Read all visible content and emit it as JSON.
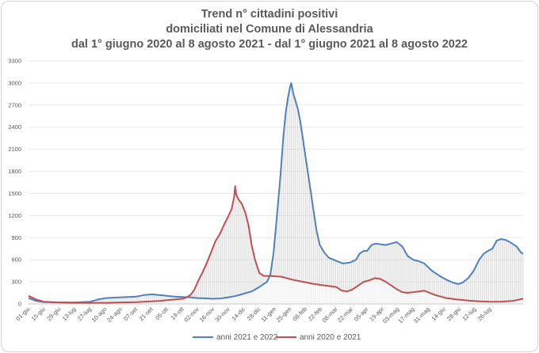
{
  "chart_data": {
    "type": "line",
    "title_lines": [
      "Trend n° cittadini positivi",
      "domiciliati nel Comune di Alessandria",
      "dal 1° giugno 2020 al 8 agosto 2021 - dal 1° giugno 2021 al 8 agosto 2022"
    ],
    "xlabel": "",
    "ylabel": "",
    "ylim": [
      0,
      3300
    ],
    "yticks": [
      0,
      300,
      600,
      900,
      1200,
      1500,
      1800,
      2100,
      2400,
      2700,
      3000,
      3300
    ],
    "x_tick_labels": [
      "01-giu",
      "15-giu",
      "29-giu",
      "13-lug",
      "27-lug",
      "10-ago",
      "24-ago",
      "07-set",
      "21-set",
      "05-ott",
      "19-ott",
      "02-nov",
      "16-nov",
      "30-nov",
      "14-dic",
      "28-dic",
      "11-gen",
      "25-gen",
      "08-feb",
      "22-feb",
      "08-mar",
      "22-mar",
      "05-apr",
      "19-apr",
      "03-mag",
      "17-mag",
      "31-mag",
      "14-giu",
      "28-giu",
      "12-lug",
      "26-lug"
    ],
    "x_tick_step_days": 14,
    "total_days": 434,
    "grid": true,
    "legend_position": "bottom",
    "series": [
      {
        "name": "anni 2021 e 2022",
        "color": "#4f81bd",
        "points": [
          [
            0,
            80
          ],
          [
            7,
            40
          ],
          [
            14,
            25
          ],
          [
            28,
            20
          ],
          [
            42,
            20
          ],
          [
            56,
            30
          ],
          [
            63,
            60
          ],
          [
            70,
            80
          ],
          [
            77,
            85
          ],
          [
            84,
            90
          ],
          [
            91,
            95
          ],
          [
            98,
            100
          ],
          [
            105,
            120
          ],
          [
            112,
            130
          ],
          [
            119,
            120
          ],
          [
            126,
            110
          ],
          [
            133,
            100
          ],
          [
            140,
            95
          ],
          [
            147,
            90
          ],
          [
            154,
            80
          ],
          [
            161,
            75
          ],
          [
            168,
            70
          ],
          [
            175,
            75
          ],
          [
            182,
            90
          ],
          [
            189,
            110
          ],
          [
            196,
            140
          ],
          [
            203,
            170
          ],
          [
            210,
            230
          ],
          [
            217,
            300
          ],
          [
            220,
            400
          ],
          [
            223,
            700
          ],
          [
            226,
            1200
          ],
          [
            229,
            1700
          ],
          [
            232,
            2300
          ],
          [
            234,
            2600
          ],
          [
            236,
            2800
          ],
          [
            238,
            2950
          ],
          [
            239,
            3000
          ],
          [
            241,
            2850
          ],
          [
            243,
            2750
          ],
          [
            245,
            2650
          ],
          [
            247,
            2500
          ],
          [
            250,
            2200
          ],
          [
            253,
            1900
          ],
          [
            256,
            1600
          ],
          [
            259,
            1300
          ],
          [
            262,
            1000
          ],
          [
            265,
            800
          ],
          [
            269,
            700
          ],
          [
            273,
            630
          ],
          [
            279,
            590
          ],
          [
            286,
            550
          ],
          [
            292,
            560
          ],
          [
            298,
            600
          ],
          [
            301,
            680
          ],
          [
            305,
            720
          ],
          [
            308,
            720
          ],
          [
            312,
            800
          ],
          [
            316,
            820
          ],
          [
            320,
            810
          ],
          [
            325,
            800
          ],
          [
            330,
            820
          ],
          [
            335,
            840
          ],
          [
            340,
            780
          ],
          [
            345,
            650
          ],
          [
            350,
            600
          ],
          [
            355,
            580
          ],
          [
            360,
            550
          ],
          [
            367,
            450
          ],
          [
            374,
            380
          ],
          [
            380,
            330
          ],
          [
            386,
            290
          ],
          [
            391,
            270
          ],
          [
            395,
            290
          ],
          [
            400,
            350
          ],
          [
            405,
            450
          ],
          [
            410,
            600
          ],
          [
            414,
            680
          ],
          [
            418,
            720
          ],
          [
            422,
            750
          ],
          [
            426,
            860
          ],
          [
            430,
            880
          ],
          [
            434,
            870
          ],
          [
            438,
            840
          ],
          [
            444,
            780
          ],
          [
            448,
            700
          ],
          [
            450,
            680
          ]
        ]
      },
      {
        "name": "anni 2020 e 2021",
        "color": "#c0504d",
        "points": [
          [
            0,
            110
          ],
          [
            7,
            60
          ],
          [
            14,
            30
          ],
          [
            28,
            20
          ],
          [
            42,
            15
          ],
          [
            56,
            15
          ],
          [
            70,
            15
          ],
          [
            84,
            20
          ],
          [
            98,
            25
          ],
          [
            112,
            35
          ],
          [
            119,
            40
          ],
          [
            126,
            50
          ],
          [
            133,
            60
          ],
          [
            140,
            70
          ],
          [
            144,
            90
          ],
          [
            148,
            130
          ],
          [
            151,
            200
          ],
          [
            154,
            300
          ],
          [
            158,
            420
          ],
          [
            162,
            550
          ],
          [
            166,
            700
          ],
          [
            170,
            850
          ],
          [
            174,
            950
          ],
          [
            178,
            1080
          ],
          [
            182,
            1200
          ],
          [
            185,
            1300
          ],
          [
            187,
            1450
          ],
          [
            188,
            1600
          ],
          [
            189,
            1480
          ],
          [
            191,
            1420
          ],
          [
            194,
            1360
          ],
          [
            197,
            1250
          ],
          [
            200,
            1080
          ],
          [
            203,
            800
          ],
          [
            206,
            600
          ],
          [
            210,
            420
          ],
          [
            214,
            380
          ],
          [
            220,
            380
          ],
          [
            230,
            370
          ],
          [
            240,
            330
          ],
          [
            250,
            300
          ],
          [
            260,
            270
          ],
          [
            270,
            250
          ],
          [
            280,
            230
          ],
          [
            285,
            180
          ],
          [
            290,
            170
          ],
          [
            295,
            200
          ],
          [
            300,
            250
          ],
          [
            305,
            300
          ],
          [
            310,
            320
          ],
          [
            315,
            350
          ],
          [
            320,
            340
          ],
          [
            325,
            300
          ],
          [
            330,
            250
          ],
          [
            335,
            200
          ],
          [
            340,
            160
          ],
          [
            345,
            150
          ],
          [
            350,
            160
          ],
          [
            355,
            170
          ],
          [
            360,
            180
          ],
          [
            365,
            150
          ],
          [
            370,
            120
          ],
          [
            375,
            100
          ],
          [
            380,
            80
          ],
          [
            390,
            60
          ],
          [
            400,
            45
          ],
          [
            410,
            35
          ],
          [
            420,
            30
          ],
          [
            430,
            30
          ],
          [
            440,
            40
          ],
          [
            445,
            55
          ],
          [
            450,
            70
          ]
        ]
      }
    ]
  }
}
